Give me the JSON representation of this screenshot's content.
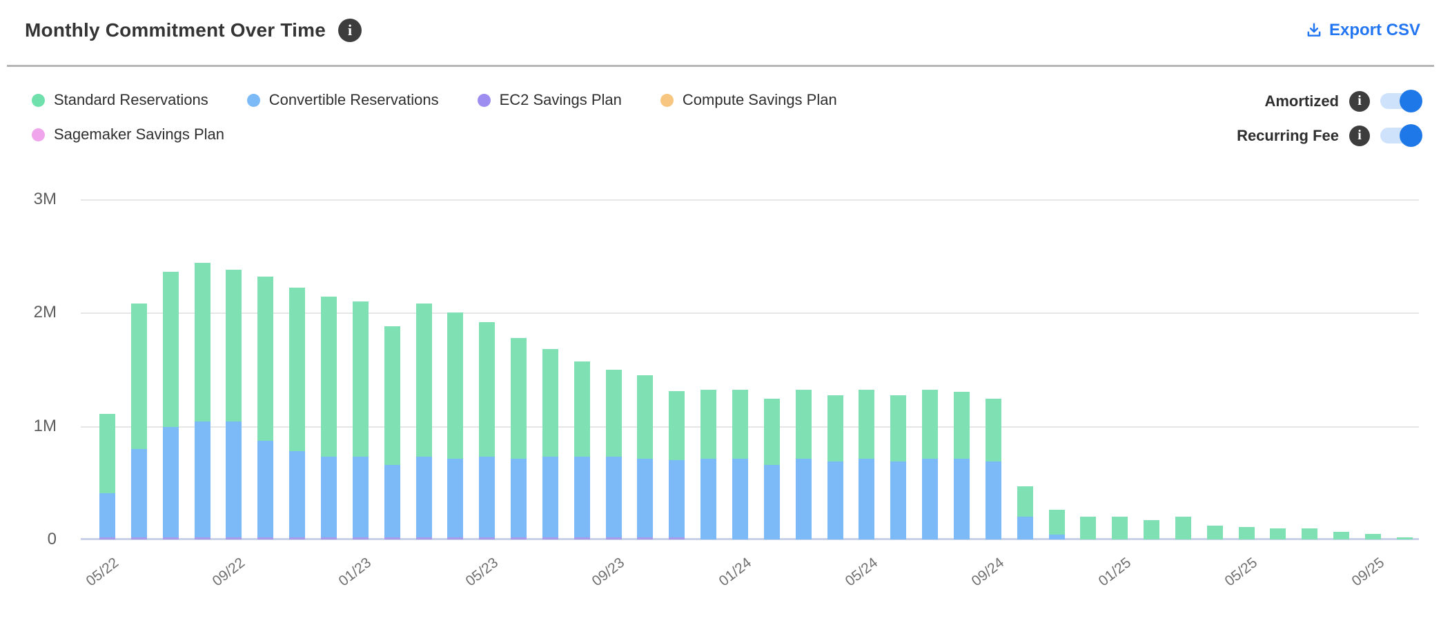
{
  "header": {
    "title": "Monthly Commitment Over Time",
    "title_info_icon": "info-icon",
    "export_label": "Export CSV",
    "export_icon": "download-icon",
    "accent_color": "#2376f2"
  },
  "legend": {
    "items": [
      {
        "label": "Standard Reservations",
        "color": "#6fdfab"
      },
      {
        "label": "Convertible Reservations",
        "color": "#7cbaf7"
      },
      {
        "label": "EC2 Savings Plan",
        "color": "#9d8df0"
      },
      {
        "label": "Compute Savings Plan",
        "color": "#f7c680"
      },
      {
        "label": "Sagemaker Savings Plan",
        "color": "#efa4ec"
      }
    ]
  },
  "toggles": [
    {
      "label": "Amortized",
      "state": "on"
    },
    {
      "label": "Recurring Fee",
      "state": "on"
    }
  ],
  "toggle_colors": {
    "track": "#cfe2fb",
    "knob": "#1f78e8"
  },
  "chart_data": {
    "type": "bar",
    "stacked": true,
    "title": "Monthly Commitment Over Time",
    "value_unit": "millions",
    "grid": true,
    "legend_position": "top-left",
    "ylim_millions": [
      0,
      3
    ],
    "y_tick_labels": [
      "0",
      "1M",
      "2M",
      "3M"
    ],
    "x": [
      "05/22",
      "06/22",
      "07/22",
      "08/22",
      "09/22",
      "10/22",
      "11/22",
      "12/22",
      "01/23",
      "02/23",
      "03/23",
      "04/23",
      "05/23",
      "06/23",
      "07/23",
      "08/23",
      "09/23",
      "10/23",
      "11/23",
      "12/23",
      "01/24",
      "02/24",
      "03/24",
      "04/24",
      "05/24",
      "06/24",
      "07/24",
      "08/24",
      "09/24",
      "10/24",
      "11/24",
      "12/24",
      "01/25",
      "02/25",
      "03/25",
      "04/25",
      "05/25",
      "06/25",
      "07/25",
      "08/25",
      "09/25",
      "10/25"
    ],
    "x_tick_every": 4,
    "x_tick_labels": [
      "05/22",
      "09/22",
      "01/23",
      "05/23",
      "09/23",
      "01/24",
      "05/24",
      "09/24",
      "01/25",
      "05/25",
      "09/25"
    ],
    "stack_order_bottom_to_top": [
      "EC2 Savings Plan",
      "Convertible Reservations",
      "Standard Reservations",
      "Compute Savings Plan",
      "Sagemaker Savings Plan"
    ],
    "series": [
      {
        "name": "EC2 Savings Plan",
        "color": "#a89bea",
        "values": [
          0.02,
          0.02,
          0.02,
          0.02,
          0.02,
          0.02,
          0.02,
          0.02,
          0.02,
          0.02,
          0.02,
          0.02,
          0.02,
          0.02,
          0.02,
          0.02,
          0.02,
          0.02,
          0.02,
          0,
          0,
          0,
          0,
          0,
          0,
          0,
          0,
          0,
          0,
          0,
          0,
          0,
          0,
          0,
          0,
          0,
          0,
          0,
          0,
          0,
          0,
          0
        ]
      },
      {
        "name": "Convertible Reservations",
        "color": "#7cbaf7",
        "values": [
          0.39,
          0.78,
          0.97,
          1.02,
          1.02,
          0.85,
          0.76,
          0.71,
          0.71,
          0.64,
          0.71,
          0.69,
          0.71,
          0.69,
          0.71,
          0.71,
          0.71,
          0.69,
          0.68,
          0.71,
          0.71,
          0.66,
          0.71,
          0.69,
          0.71,
          0.69,
          0.71,
          0.71,
          0.69,
          0.2,
          0.04,
          0,
          0,
          0,
          0,
          0,
          0,
          0,
          0,
          0,
          0,
          0
        ]
      },
      {
        "name": "Standard Reservations",
        "color": "#7ee0b3",
        "values": [
          0.7,
          1.28,
          1.37,
          1.4,
          1.34,
          1.45,
          1.44,
          1.41,
          1.37,
          1.22,
          1.35,
          1.29,
          1.19,
          1.07,
          0.95,
          0.84,
          0.77,
          0.74,
          0.61,
          0.61,
          0.61,
          0.58,
          0.61,
          0.58,
          0.61,
          0.58,
          0.61,
          0.59,
          0.55,
          0.27,
          0.22,
          0.2,
          0.2,
          0.17,
          0.2,
          0.12,
          0.11,
          0.1,
          0.1,
          0.07,
          0.05,
          0.02
        ]
      },
      {
        "name": "Compute Savings Plan",
        "color": "#f7c680",
        "values": [
          0,
          0,
          0,
          0,
          0,
          0,
          0,
          0,
          0,
          0,
          0,
          0,
          0,
          0,
          0,
          0,
          0,
          0,
          0,
          0,
          0,
          0,
          0,
          0,
          0,
          0,
          0,
          0,
          0,
          0,
          0,
          0,
          0,
          0,
          0,
          0,
          0,
          0,
          0,
          0,
          0,
          0
        ]
      },
      {
        "name": "Sagemaker Savings Plan",
        "color": "#efa4ec",
        "values": [
          0,
          0,
          0,
          0,
          0,
          0,
          0,
          0,
          0,
          0,
          0,
          0,
          0,
          0,
          0,
          0,
          0,
          0,
          0,
          0,
          0,
          0,
          0,
          0,
          0,
          0,
          0,
          0,
          0,
          0,
          0,
          0,
          0,
          0,
          0,
          0,
          0,
          0,
          0,
          0,
          0,
          0
        ]
      }
    ]
  }
}
